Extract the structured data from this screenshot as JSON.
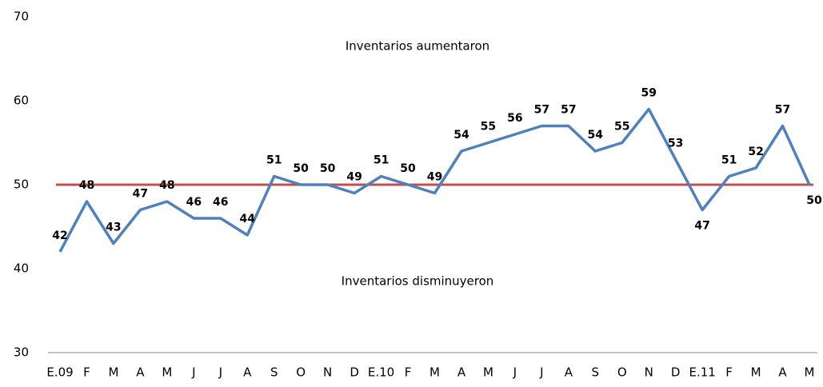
{
  "chart_data": {
    "type": "line",
    "categories": [
      "E.09",
      "F",
      "M",
      "A",
      "M",
      "J",
      "J",
      "A",
      "S",
      "O",
      "N",
      "D",
      "E.10",
      "F",
      "M",
      "A",
      "M",
      "J",
      "J",
      "A",
      "S",
      "O",
      "N",
      "D",
      "E.11",
      "F",
      "M",
      "A",
      "M"
    ],
    "series": [
      {
        "name": null,
        "color": "#4f81bd",
        "values": [
          42,
          48,
          43,
          47,
          48,
          46,
          46,
          44,
          51,
          50,
          50,
          49,
          51,
          50,
          49,
          54,
          55,
          56,
          57,
          57,
          54,
          55,
          59,
          53,
          47,
          51,
          52,
          57,
          50
        ]
      }
    ],
    "ylim": [
      30,
      70
    ],
    "yticks": [
      30,
      40,
      50,
      60,
      70
    ],
    "reference_line": {
      "value": 50,
      "color": "#c0504d"
    },
    "annotations": [
      "Inventarios aumentaron",
      "Inventarios disminuyeron"
    ]
  }
}
